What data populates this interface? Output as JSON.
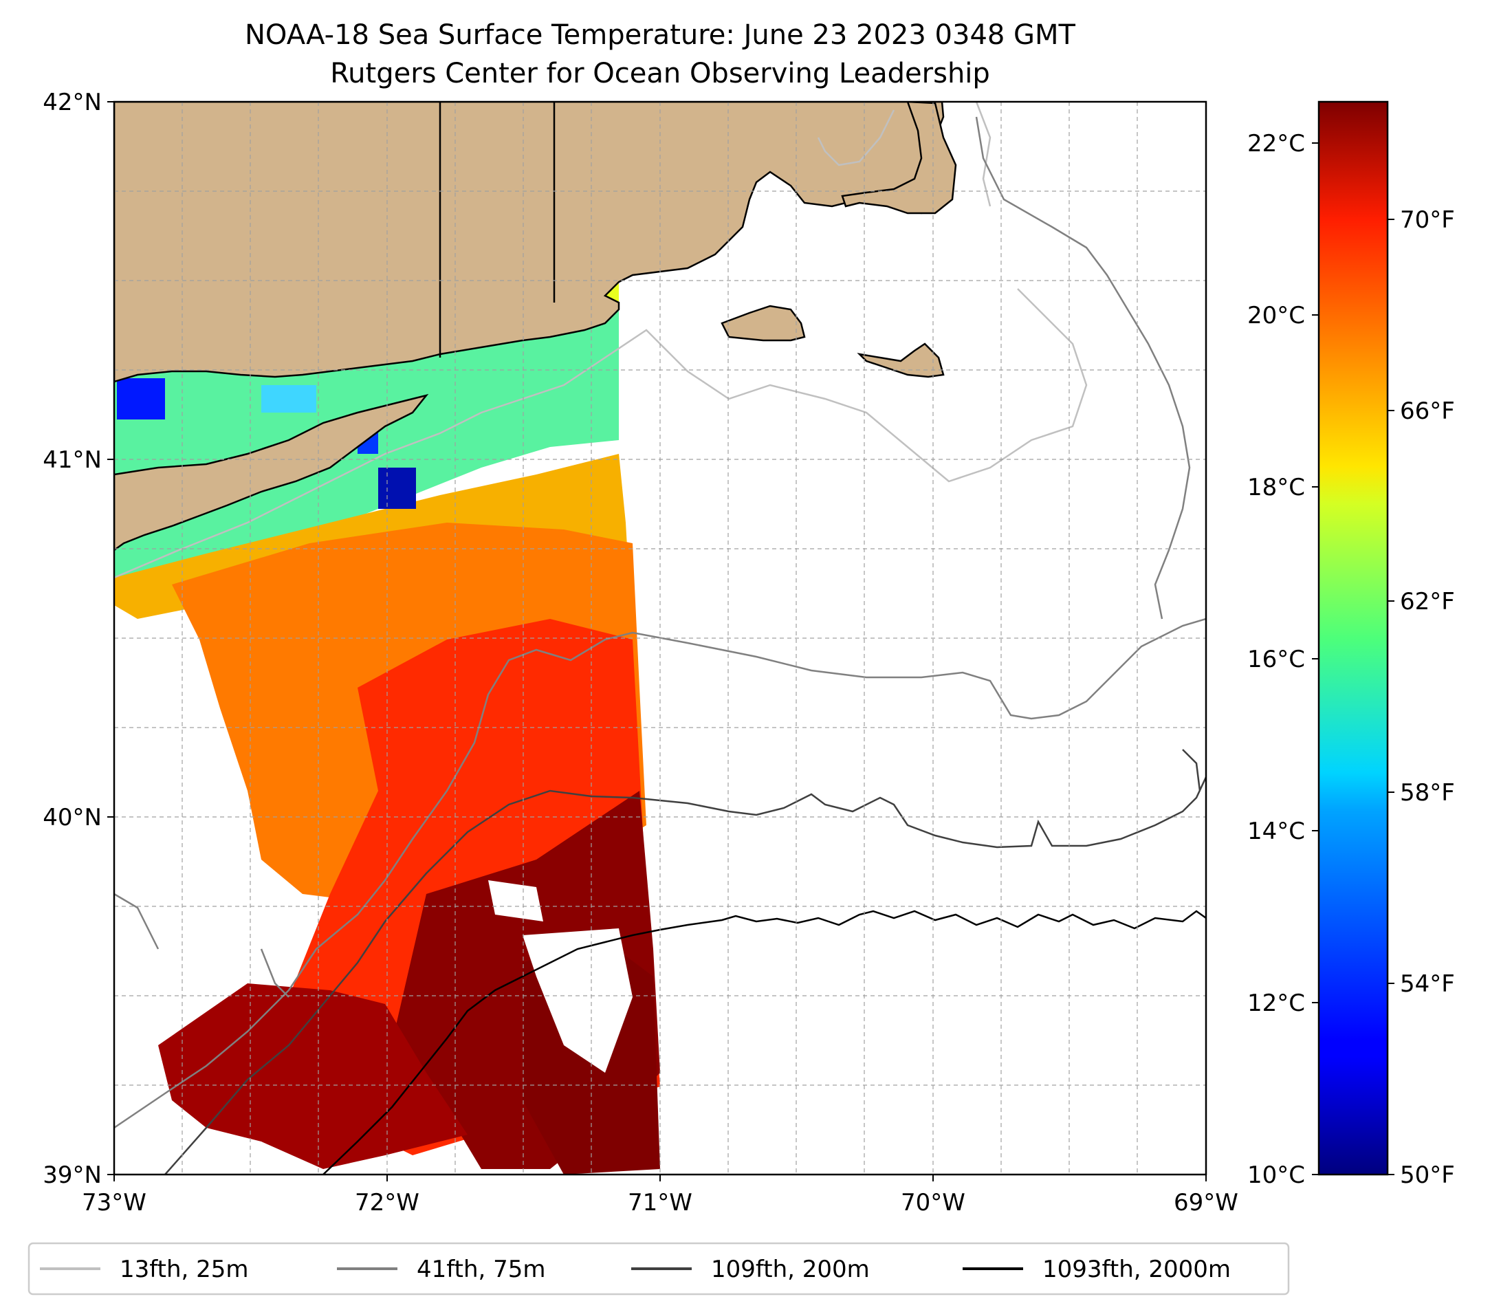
{
  "title_line1": "NOAA-18 Sea Surface Temperature: June 23 2023 0348 GMT",
  "title_line2": "Rutgers Center for Ocean Observing Leadership",
  "map": {
    "lon_range": [
      -73,
      -69
    ],
    "lat_range": [
      39,
      42
    ],
    "lon_ticks": [
      "73°W",
      "72°W",
      "71°W",
      "70°W",
      "69°W"
    ],
    "lat_ticks": [
      "42°N",
      "41°N",
      "40°N",
      "39°N"
    ],
    "land_color": "#d2b48c",
    "grid": true,
    "regions": [
      "Long Island",
      "Connecticut",
      "Rhode Island",
      "Massachusetts",
      "Cape Cod",
      "Martha's Vineyard",
      "Nantucket"
    ]
  },
  "colorbar": {
    "colormap": "jet",
    "celsius_ticks": [
      "22°C",
      "20°C",
      "18°C",
      "16°C",
      "14°C",
      "12°C",
      "10°C"
    ],
    "fahrenheit_ticks": [
      "70°F",
      "66°F",
      "62°F",
      "58°F",
      "54°F",
      "50°F"
    ],
    "celsius_range": [
      10,
      22.5
    ]
  },
  "legend": {
    "items": [
      {
        "label": "13fth, 25m",
        "color": "#c0c0c0"
      },
      {
        "label": "41fth, 75m",
        "color": "#808080"
      },
      {
        "label": "109fth, 200m",
        "color": "#404040"
      },
      {
        "label": "1093fth, 2000m",
        "color": "#000000"
      }
    ]
  }
}
